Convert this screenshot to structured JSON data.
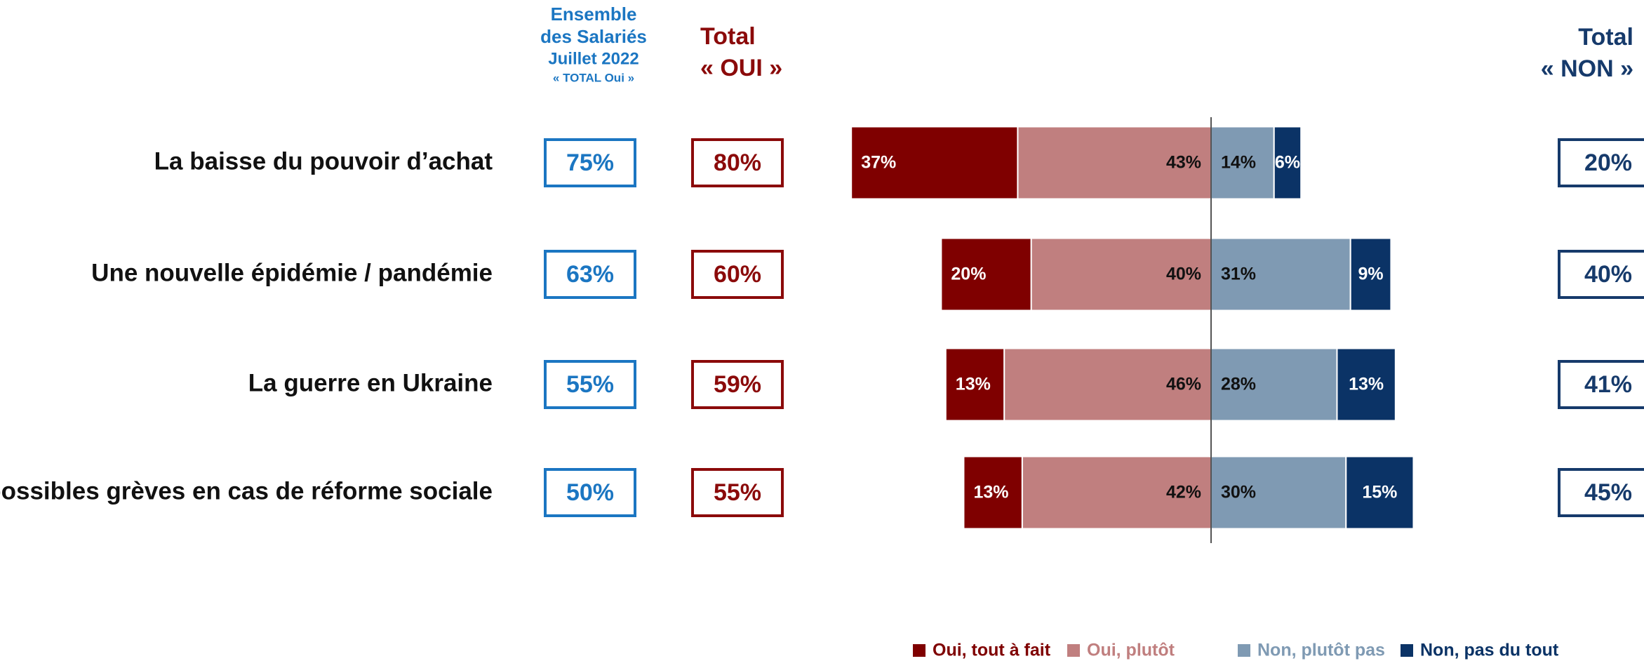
{
  "chart_data": {
    "type": "diverging_bar",
    "categories": [
      "La baisse du pouvoir d’achat",
      "Une nouvelle épidémie / pandémie",
      "La guerre en Ukraine",
      "De possibles grèves en cas de réforme sociale"
    ],
    "series": [
      {
        "name": "Oui, tout à fait",
        "color": "#7f0000",
        "values": [
          37,
          20,
          13,
          13
        ],
        "value_labels": [
          "37%",
          "20%",
          "13%",
          "13%"
        ]
      },
      {
        "name": "Oui, plutôt",
        "color": "#c07f7f",
        "values": [
          43,
          40,
          46,
          42
        ],
        "value_labels": [
          "43%",
          "40%",
          "46%",
          "42%"
        ]
      },
      {
        "name": "Non, plutôt pas",
        "color": "#7f9ab3",
        "values": [
          14,
          31,
          28,
          30
        ],
        "value_labels": [
          "14%",
          "31%",
          "28%",
          "30%"
        ]
      },
      {
        "name": "Non, pas du tout",
        "color": "#0b3366",
        "values": [
          6,
          9,
          13,
          15
        ],
        "value_labels": [
          "6%",
          "9%",
          "13%",
          "15%"
        ]
      }
    ],
    "columns": [
      {
        "header": [
          "Ensemble",
          "des Salariés",
          "Juillet 2022",
          "« TOTAL Oui »"
        ],
        "color": "#1b76c2",
        "values": [
          75,
          63,
          55,
          50
        ],
        "value_labels": [
          "75%",
          "63%",
          "55%",
          "50%"
        ]
      },
      {
        "header": [
          "Total",
          "« OUI »"
        ],
        "color": "#8b0a0a",
        "values": [
          80,
          60,
          59,
          55
        ],
        "value_labels": [
          "80%",
          "60%",
          "59%",
          "55%"
        ]
      },
      {
        "header": [
          "Total",
          "« NON »"
        ],
        "color": "#163a6b",
        "values": [
          20,
          40,
          41,
          45
        ],
        "value_labels": [
          "20%",
          "40%",
          "41%",
          "45%"
        ]
      }
    ]
  }
}
